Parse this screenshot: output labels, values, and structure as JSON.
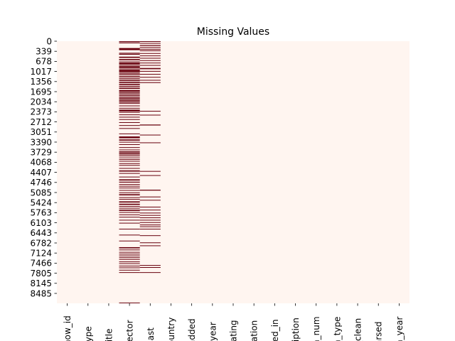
{
  "chart_data": {
    "type": "heatmap",
    "title": "Missing Values",
    "xlabel": "",
    "ylabel": "",
    "n_rows": 8807,
    "colors": {
      "present": "#fff5f0",
      "missing": "#67000d"
    },
    "colorbar": false,
    "columns": [
      "show_id",
      "type",
      "title",
      "director",
      "cast",
      "country",
      "date_added",
      "release_year",
      "rating",
      "duration",
      "listed_in",
      "description",
      "duration_num",
      "duration_type",
      "date_added_clean",
      "date_parsed",
      "added_year"
    ],
    "column_labels_visible": [
      "how_id",
      "type",
      "title",
      "rector",
      "cast",
      "ountry",
      "added",
      "_year",
      "rating",
      "ration",
      "ted_in",
      "ription",
      "n_num",
      "n_type",
      "_clean",
      "arsed",
      "n_year"
    ],
    "yticks": [
      "0",
      "339",
      "678",
      "1017",
      "1356",
      "1695",
      "2034",
      "2373",
      "2712",
      "3051",
      "3390",
      "3729",
      "4068",
      "4407",
      "4746",
      "5085",
      "5424",
      "5763",
      "6103",
      "6443",
      "6782",
      "7124",
      "7466",
      "7805",
      "8145",
      "8485"
    ],
    "missing_ranges": {
      "director": [
        [
          0,
          12
        ],
        [
          40,
          70
        ],
        [
          230,
          300
        ],
        [
          390,
          420
        ],
        [
          430,
          440
        ],
        [
          520,
          560
        ],
        [
          600,
          640
        ],
        [
          680,
          700
        ],
        [
          720,
          780
        ],
        [
          800,
          820
        ],
        [
          840,
          900
        ],
        [
          920,
          940
        ],
        [
          960,
          1040
        ],
        [
          1060,
          1090
        ],
        [
          1110,
          1140
        ],
        [
          1170,
          1200
        ],
        [
          1230,
          1260
        ],
        [
          1290,
          1330
        ],
        [
          1360,
          1400
        ],
        [
          1430,
          1470
        ],
        [
          1500,
          1530
        ],
        [
          1560,
          1600
        ],
        [
          1640,
          1700
        ],
        [
          1720,
          1760
        ],
        [
          1790,
          1830
        ],
        [
          1860,
          1880
        ],
        [
          1900,
          1940
        ],
        [
          1960,
          2000
        ],
        [
          2020,
          2060
        ],
        [
          2080,
          2100
        ],
        [
          2160,
          2180
        ],
        [
          2240,
          2260
        ],
        [
          2300,
          2360
        ],
        [
          2380,
          2400
        ],
        [
          2460,
          2480
        ],
        [
          2540,
          2560
        ],
        [
          2620,
          2640
        ],
        [
          2720,
          2740
        ],
        [
          2820,
          2840
        ],
        [
          2920,
          2940
        ],
        [
          3100,
          3120
        ],
        [
          3200,
          3260
        ],
        [
          3300,
          3340
        ],
        [
          3380,
          3400
        ],
        [
          3460,
          3480
        ],
        [
          3560,
          3580
        ],
        [
          3640,
          3660
        ],
        [
          3700,
          3740
        ],
        [
          3760,
          3800
        ],
        [
          3820,
          3840
        ],
        [
          3880,
          3900
        ],
        [
          3950,
          3980
        ],
        [
          4020,
          4040
        ],
        [
          4100,
          4120
        ],
        [
          4160,
          4180
        ],
        [
          4260,
          4280
        ],
        [
          4340,
          4380
        ],
        [
          4430,
          4450
        ],
        [
          4550,
          4570
        ],
        [
          4640,
          4680
        ],
        [
          4720,
          4750
        ],
        [
          4800,
          4820
        ],
        [
          4860,
          4880
        ],
        [
          4920,
          4940
        ],
        [
          5000,
          5020
        ],
        [
          5080,
          5100
        ],
        [
          5140,
          5180
        ],
        [
          5240,
          5260
        ],
        [
          5300,
          5320
        ],
        [
          5380,
          5420
        ],
        [
          5460,
          5500
        ],
        [
          5540,
          5560
        ],
        [
          5600,
          5620
        ],
        [
          5660,
          5700
        ],
        [
          5740,
          5760
        ],
        [
          5820,
          5840
        ],
        [
          5900,
          5920
        ],
        [
          6000,
          6020
        ],
        [
          6100,
          6120
        ],
        [
          6300,
          6320
        ],
        [
          6500,
          6520
        ],
        [
          6700,
          6720
        ],
        [
          6920,
          6960
        ],
        [
          7000,
          7020
        ],
        [
          7080,
          7100
        ],
        [
          7140,
          7160
        ],
        [
          7200,
          7220
        ],
        [
          7260,
          7280
        ],
        [
          7320,
          7340
        ],
        [
          7400,
          7420
        ],
        [
          7460,
          7480
        ],
        [
          7540,
          7560
        ],
        [
          7600,
          7620
        ],
        [
          7680,
          7700
        ],
        [
          7760,
          7780
        ],
        [
          8780,
          8800
        ]
      ],
      "cast": [
        [
          0,
          12
        ],
        [
          60,
          80
        ],
        [
          130,
          160
        ],
        [
          200,
          220
        ],
        [
          260,
          280
        ],
        [
          310,
          330
        ],
        [
          400,
          420
        ],
        [
          480,
          500
        ],
        [
          560,
          580
        ],
        [
          640,
          660
        ],
        [
          720,
          740
        ],
        [
          800,
          820
        ],
        [
          900,
          940
        ],
        [
          1000,
          1020
        ],
        [
          1100,
          1120
        ],
        [
          1200,
          1220
        ],
        [
          1300,
          1320
        ],
        [
          1380,
          1400
        ],
        [
          2340,
          2360
        ],
        [
          2470,
          2490
        ],
        [
          2800,
          2830
        ],
        [
          3140,
          3160
        ],
        [
          3400,
          3420
        ],
        [
          4360,
          4380
        ],
        [
          4500,
          4520
        ],
        [
          4990,
          5020
        ],
        [
          5220,
          5240
        ],
        [
          5330,
          5350
        ],
        [
          5560,
          5580
        ],
        [
          5660,
          5680
        ],
        [
          5760,
          5780
        ],
        [
          5840,
          5860
        ],
        [
          5920,
          5940
        ],
        [
          6000,
          6020
        ],
        [
          6080,
          6100
        ],
        [
          6160,
          6180
        ],
        [
          6220,
          6240
        ],
        [
          6300,
          6320
        ],
        [
          6520,
          6540
        ],
        [
          6760,
          6780
        ],
        [
          6860,
          6880
        ],
        [
          7520,
          7540
        ],
        [
          7590,
          7610
        ],
        [
          7760,
          7780
        ]
      ]
    }
  }
}
